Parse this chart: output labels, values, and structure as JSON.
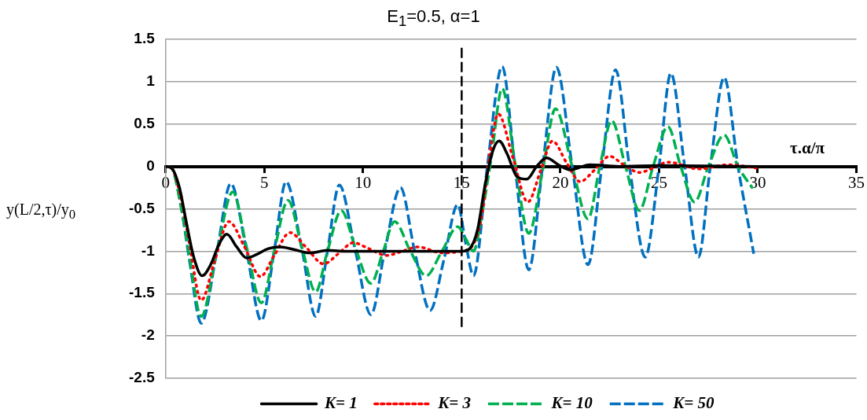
{
  "chart_data": {
    "type": "line",
    "title": "E$_{1}$=0.5, α=1",
    "xlabel": "τ.α/π",
    "ylabel": "y(L/2,τ)/y$_{0}$",
    "xlim": [
      0,
      35
    ],
    "xticks": [
      0,
      5,
      10,
      15,
      20,
      25,
      30,
      35
    ],
    "ylim": [
      -2.5,
      1.5
    ],
    "yticks": [
      -2.5,
      -2,
      -1.5,
      -1,
      -0.5,
      0,
      0.5,
      1,
      1.5
    ],
    "grid": "y",
    "legend": "bottom",
    "marker": "none",
    "ref_lines": [
      {
        "axis": "x",
        "value": 15,
        "color": "#000000",
        "line_style": "dashed"
      }
    ],
    "series": [
      {
        "name": "K= 1",
        "color": "#000000",
        "line_style": "solid",
        "x": [
          0,
          0.3,
          0.7,
          1,
          1.4,
          1.85,
          2.3,
          2.7,
          3.1,
          3.6,
          4.1,
          4.6,
          5.2,
          5.8,
          6.5,
          7.3,
          8.2,
          9,
          10,
          12,
          15,
          15.4,
          15.8,
          16.2,
          16.6,
          16.9,
          17.3,
          17.8,
          18.3,
          18.8,
          19.3,
          19.9,
          20.5,
          21.5,
          23,
          25,
          30
        ],
        "values": [
          0,
          -0.02,
          -0.25,
          -0.6,
          -1.05,
          -1.29,
          -1.15,
          -0.92,
          -0.8,
          -0.95,
          -1.08,
          -1.04,
          -0.97,
          -0.95,
          -0.98,
          -1.02,
          -0.99,
          -1,
          -1,
          -1,
          -1,
          -0.97,
          -0.75,
          -0.2,
          0.2,
          0.3,
          0.15,
          -0.12,
          -0.15,
          0,
          0.1,
          0.02,
          -0.04,
          0.02,
          0,
          0.01,
          0
        ]
      },
      {
        "name": "K= 3",
        "color": "#ff0000",
        "line_style": "dotted",
        "x": [
          0,
          0.3,
          0.8,
          1.2,
          1.8,
          2.5,
          3.2,
          4,
          4.8,
          5.5,
          6.3,
          7.1,
          8,
          8.8,
          9.5,
          10.3,
          11.2,
          12,
          12.8,
          14,
          15,
          15.5,
          16,
          16.4,
          16.85,
          17.6,
          18.35,
          19,
          19.6,
          20.3,
          21,
          21.7,
          22.5,
          23.2,
          24,
          25.5,
          27,
          28.5,
          30
        ],
        "values": [
          0,
          -0.02,
          -0.4,
          -0.9,
          -1.58,
          -1.1,
          -0.65,
          -0.95,
          -1.3,
          -1.05,
          -0.78,
          -0.95,
          -1.15,
          -1.02,
          -0.9,
          -0.97,
          -1.05,
          -1,
          -0.95,
          -1.02,
          -1,
          -0.95,
          -0.6,
          0.1,
          0.62,
          0.1,
          -0.42,
          -0.05,
          0.3,
          0.05,
          -0.18,
          -0.05,
          0.12,
          0.02,
          -0.07,
          0.05,
          -0.03,
          0.02,
          -0.02
        ]
      },
      {
        "name": "K= 10",
        "color": "#00b050",
        "line_style": "dashed",
        "x": [
          0,
          0.3,
          0.8,
          1.2,
          1.8,
          2.6,
          3.4,
          4.1,
          4.85,
          5.5,
          6.2,
          6.9,
          7.6,
          8.2,
          8.9,
          9.6,
          10.4,
          11,
          11.6,
          12.4,
          13.2,
          14,
          14.8,
          15.2,
          15.6,
          16,
          16.5,
          17.05,
          17.7,
          18.4,
          19.1,
          19.75,
          20.6,
          21.4,
          22,
          22.6,
          23.3,
          24,
          24.7,
          25.45,
          26.1,
          26.8,
          27.5,
          28.3,
          29,
          29.75
        ],
        "values": [
          0,
          -0.02,
          -0.5,
          -1.05,
          -1.77,
          -1,
          -0.3,
          -0.95,
          -1.61,
          -1,
          -0.4,
          -0.95,
          -1.48,
          -1,
          -0.52,
          -0.95,
          -1.38,
          -1.02,
          -0.65,
          -1,
          -1.29,
          -1,
          -0.71,
          -0.85,
          -1,
          -0.6,
          0.1,
          0.92,
          0.05,
          -0.79,
          -0.05,
          0.68,
          0,
          -0.62,
          0,
          0.54,
          0,
          -0.52,
          0,
          0.47,
          0,
          -0.42,
          0,
          0.37,
          0,
          -0.26
        ]
      },
      {
        "name": "K= 50",
        "color": "#0070c0",
        "line_style": "dashed",
        "x": [
          0,
          0.3,
          0.8,
          1.2,
          1.8,
          2.6,
          3.3,
          4.1,
          4.85,
          5.5,
          6.1,
          6.9,
          7.6,
          8.2,
          8.8,
          9.6,
          10.4,
          11.1,
          11.9,
          12.6,
          13.4,
          14.1,
          14.8,
          15.2,
          15.6,
          16.3,
          17.05,
          17.7,
          18.4,
          19.1,
          19.8,
          20.6,
          21.4,
          22.1,
          22.8,
          23.5,
          24.3,
          25,
          25.6,
          26.3,
          27,
          27.6,
          28.3,
          29,
          29.8
        ],
        "values": [
          0,
          -0.02,
          -0.5,
          -1.1,
          -1.85,
          -1,
          -0.2,
          -1,
          -1.82,
          -1,
          -0.18,
          -0.97,
          -1.77,
          -1,
          -0.22,
          -0.98,
          -1.75,
          -1,
          -0.25,
          -0.98,
          -1.7,
          -1.1,
          -0.45,
          -0.9,
          -1.29,
          0,
          1.18,
          0,
          -1.22,
          0,
          1.17,
          0,
          -1.16,
          0,
          1.14,
          0,
          -1.07,
          0,
          1.1,
          0,
          -1.07,
          0,
          1.05,
          0,
          -1.03
        ]
      }
    ]
  }
}
